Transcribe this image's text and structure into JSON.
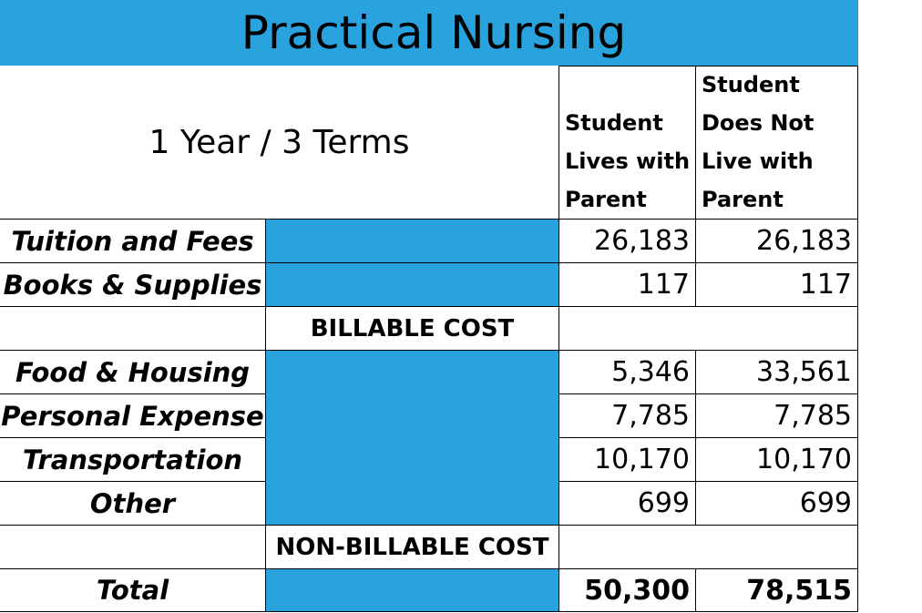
{
  "title": "Practical Nursing",
  "program_length": "1 Year / 3 Terms",
  "columns": {
    "lives_with_parent": "Student Lives with Parent",
    "not_with_parent": "Student Does Not Live with Parent"
  },
  "rows": {
    "tuition": {
      "label": "Tuition and Fees",
      "with_parent": "26,183",
      "without_parent": "26,183"
    },
    "books": {
      "label": "Books & Supplies",
      "with_parent": "117",
      "without_parent": "117"
    },
    "billable": {
      "label": "BILLABLE COST"
    },
    "food": {
      "label": "Food & Housing",
      "with_parent": "5,346",
      "without_parent": "33,561"
    },
    "personal": {
      "label": "Personal Expense",
      "with_parent": "7,785",
      "without_parent": "7,785"
    },
    "transportation": {
      "label": "Transportation",
      "with_parent": "10,170",
      "without_parent": "10,170"
    },
    "other": {
      "label": "Other",
      "with_parent": "699",
      "without_parent": "699"
    },
    "non_billable": {
      "label": "NON-BILLABLE COST"
    },
    "total": {
      "label": "Total",
      "with_parent": "50,300",
      "without_parent": "78,515"
    }
  },
  "colors": {
    "accent": "#29a3dd",
    "border": "#000000",
    "background": "#ffffff"
  }
}
